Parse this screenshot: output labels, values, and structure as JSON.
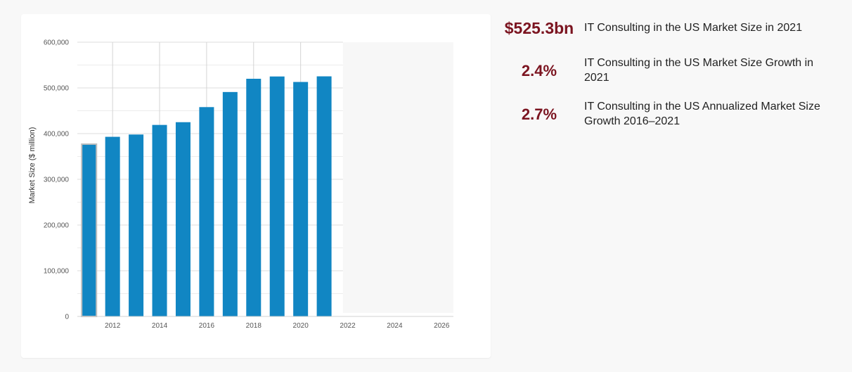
{
  "chart_data": {
    "type": "bar",
    "ylabel": "Market Size ($ million)",
    "xlabel": "",
    "x": [
      2011,
      2012,
      2013,
      2014,
      2015,
      2016,
      2017,
      2018,
      2019,
      2020,
      2021
    ],
    "values": [
      377000,
      393000,
      398000,
      419000,
      425000,
      458000,
      491000,
      520000,
      525000,
      513000,
      525300
    ],
    "xticks": [
      "2012",
      "2014",
      "2016",
      "2018",
      "2020",
      "2022",
      "2024",
      "2026"
    ],
    "yticks": [
      "0",
      "100,000",
      "200,000",
      "300,000",
      "400,000",
      "500,000",
      "600,000"
    ],
    "ylim": [
      0,
      600000
    ],
    "xlim": [
      2010.5,
      2026.5
    ],
    "forecast_region": [
      2021.8,
      2026.5
    ],
    "bar_color": "#1186c3",
    "first_bar_color": "#bdbdbd",
    "forecast_shade": "#f7f7f7",
    "grid": true
  },
  "stats": [
    {
      "value": "$525.3bn",
      "label": "IT Consulting in the US Market Size in 2021"
    },
    {
      "value": "2.4%",
      "label": "IT Consulting in the US Market Size Growth in 2021"
    },
    {
      "value": "2.7%",
      "label": "IT Consulting in the US Annualized Market Size Growth 2016–2021"
    }
  ]
}
